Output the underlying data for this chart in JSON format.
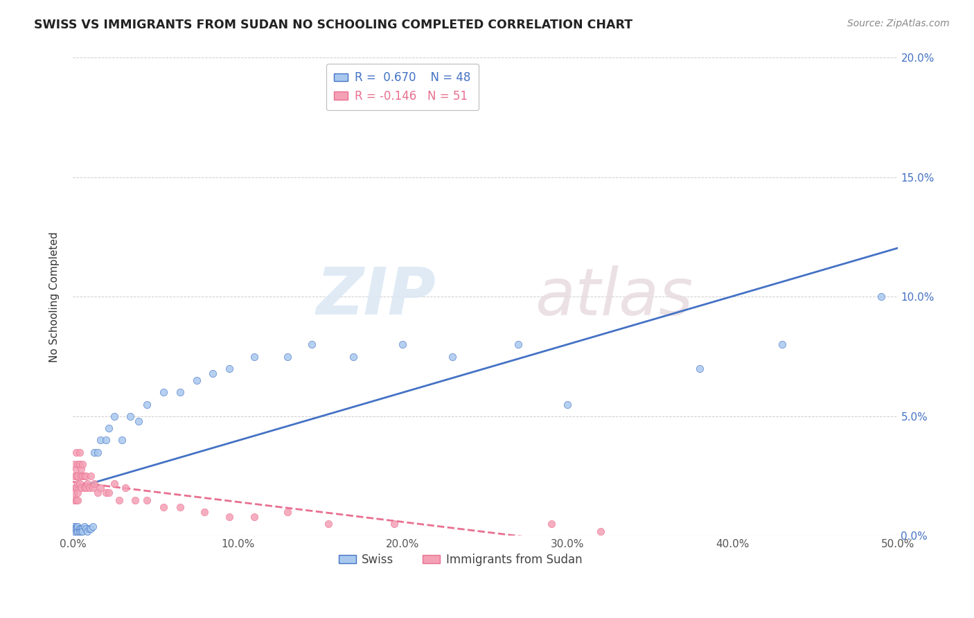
{
  "title": "SWISS VS IMMIGRANTS FROM SUDAN NO SCHOOLING COMPLETED CORRELATION CHART",
  "source": "Source: ZipAtlas.com",
  "ylabel": "No Schooling Completed",
  "xlim": [
    0.0,
    0.5
  ],
  "ylim": [
    0.0,
    0.2
  ],
  "xticks": [
    0.0,
    0.1,
    0.2,
    0.3,
    0.4,
    0.5
  ],
  "yticks": [
    0.0,
    0.05,
    0.1,
    0.15,
    0.2
  ],
  "xtick_labels": [
    "0.0%",
    "10.0%",
    "20.0%",
    "30.0%",
    "40.0%",
    "50.0%"
  ],
  "ytick_labels": [
    "0.0%",
    "5.0%",
    "10.0%",
    "15.0%",
    "20.0%"
  ],
  "swiss_color": "#A8C8EE",
  "sudan_color": "#F4A0B5",
  "swiss_line_color": "#4472C4",
  "sudan_line_color": "#E87090",
  "swiss_R": 0.67,
  "swiss_N": 48,
  "sudan_R": -0.146,
  "sudan_N": 51,
  "watermark_zip": "ZIP",
  "watermark_atlas": "atlas",
  "swiss_x": [
    0.001,
    0.001,
    0.001,
    0.002,
    0.002,
    0.002,
    0.002,
    0.003,
    0.003,
    0.003,
    0.004,
    0.004,
    0.005,
    0.005,
    0.006,
    0.006,
    0.007,
    0.008,
    0.009,
    0.01,
    0.011,
    0.012,
    0.013,
    0.015,
    0.017,
    0.02,
    0.022,
    0.025,
    0.03,
    0.035,
    0.04,
    0.045,
    0.055,
    0.065,
    0.075,
    0.085,
    0.095,
    0.11,
    0.13,
    0.145,
    0.17,
    0.2,
    0.23,
    0.27,
    0.3,
    0.38,
    0.43,
    0.49
  ],
  "swiss_y": [
    0.004,
    0.003,
    0.002,
    0.004,
    0.003,
    0.002,
    0.003,
    0.003,
    0.002,
    0.004,
    0.003,
    0.002,
    0.003,
    0.002,
    0.003,
    0.002,
    0.004,
    0.003,
    0.002,
    0.003,
    0.003,
    0.004,
    0.035,
    0.035,
    0.04,
    0.04,
    0.045,
    0.05,
    0.04,
    0.05,
    0.048,
    0.055,
    0.06,
    0.06,
    0.065,
    0.068,
    0.07,
    0.075,
    0.075,
    0.08,
    0.075,
    0.08,
    0.075,
    0.08,
    0.055,
    0.07,
    0.08,
    0.1
  ],
  "sudan_x": [
    0.001,
    0.001,
    0.001,
    0.001,
    0.001,
    0.002,
    0.002,
    0.002,
    0.002,
    0.002,
    0.003,
    0.003,
    0.003,
    0.003,
    0.003,
    0.004,
    0.004,
    0.004,
    0.005,
    0.005,
    0.005,
    0.006,
    0.006,
    0.007,
    0.007,
    0.008,
    0.008,
    0.009,
    0.01,
    0.011,
    0.012,
    0.013,
    0.015,
    0.017,
    0.02,
    0.022,
    0.025,
    0.028,
    0.032,
    0.038,
    0.045,
    0.055,
    0.065,
    0.08,
    0.095,
    0.11,
    0.13,
    0.155,
    0.195,
    0.29,
    0.32
  ],
  "sudan_y": [
    0.025,
    0.02,
    0.018,
    0.015,
    0.03,
    0.025,
    0.02,
    0.015,
    0.035,
    0.028,
    0.022,
    0.018,
    0.015,
    0.03,
    0.025,
    0.035,
    0.03,
    0.022,
    0.028,
    0.025,
    0.02,
    0.03,
    0.025,
    0.025,
    0.02,
    0.025,
    0.02,
    0.022,
    0.02,
    0.025,
    0.02,
    0.022,
    0.018,
    0.02,
    0.018,
    0.018,
    0.022,
    0.015,
    0.02,
    0.015,
    0.015,
    0.012,
    0.012,
    0.01,
    0.008,
    0.008,
    0.01,
    0.005,
    0.005,
    0.005,
    0.002
  ],
  "sudan_line_xend": 0.35
}
